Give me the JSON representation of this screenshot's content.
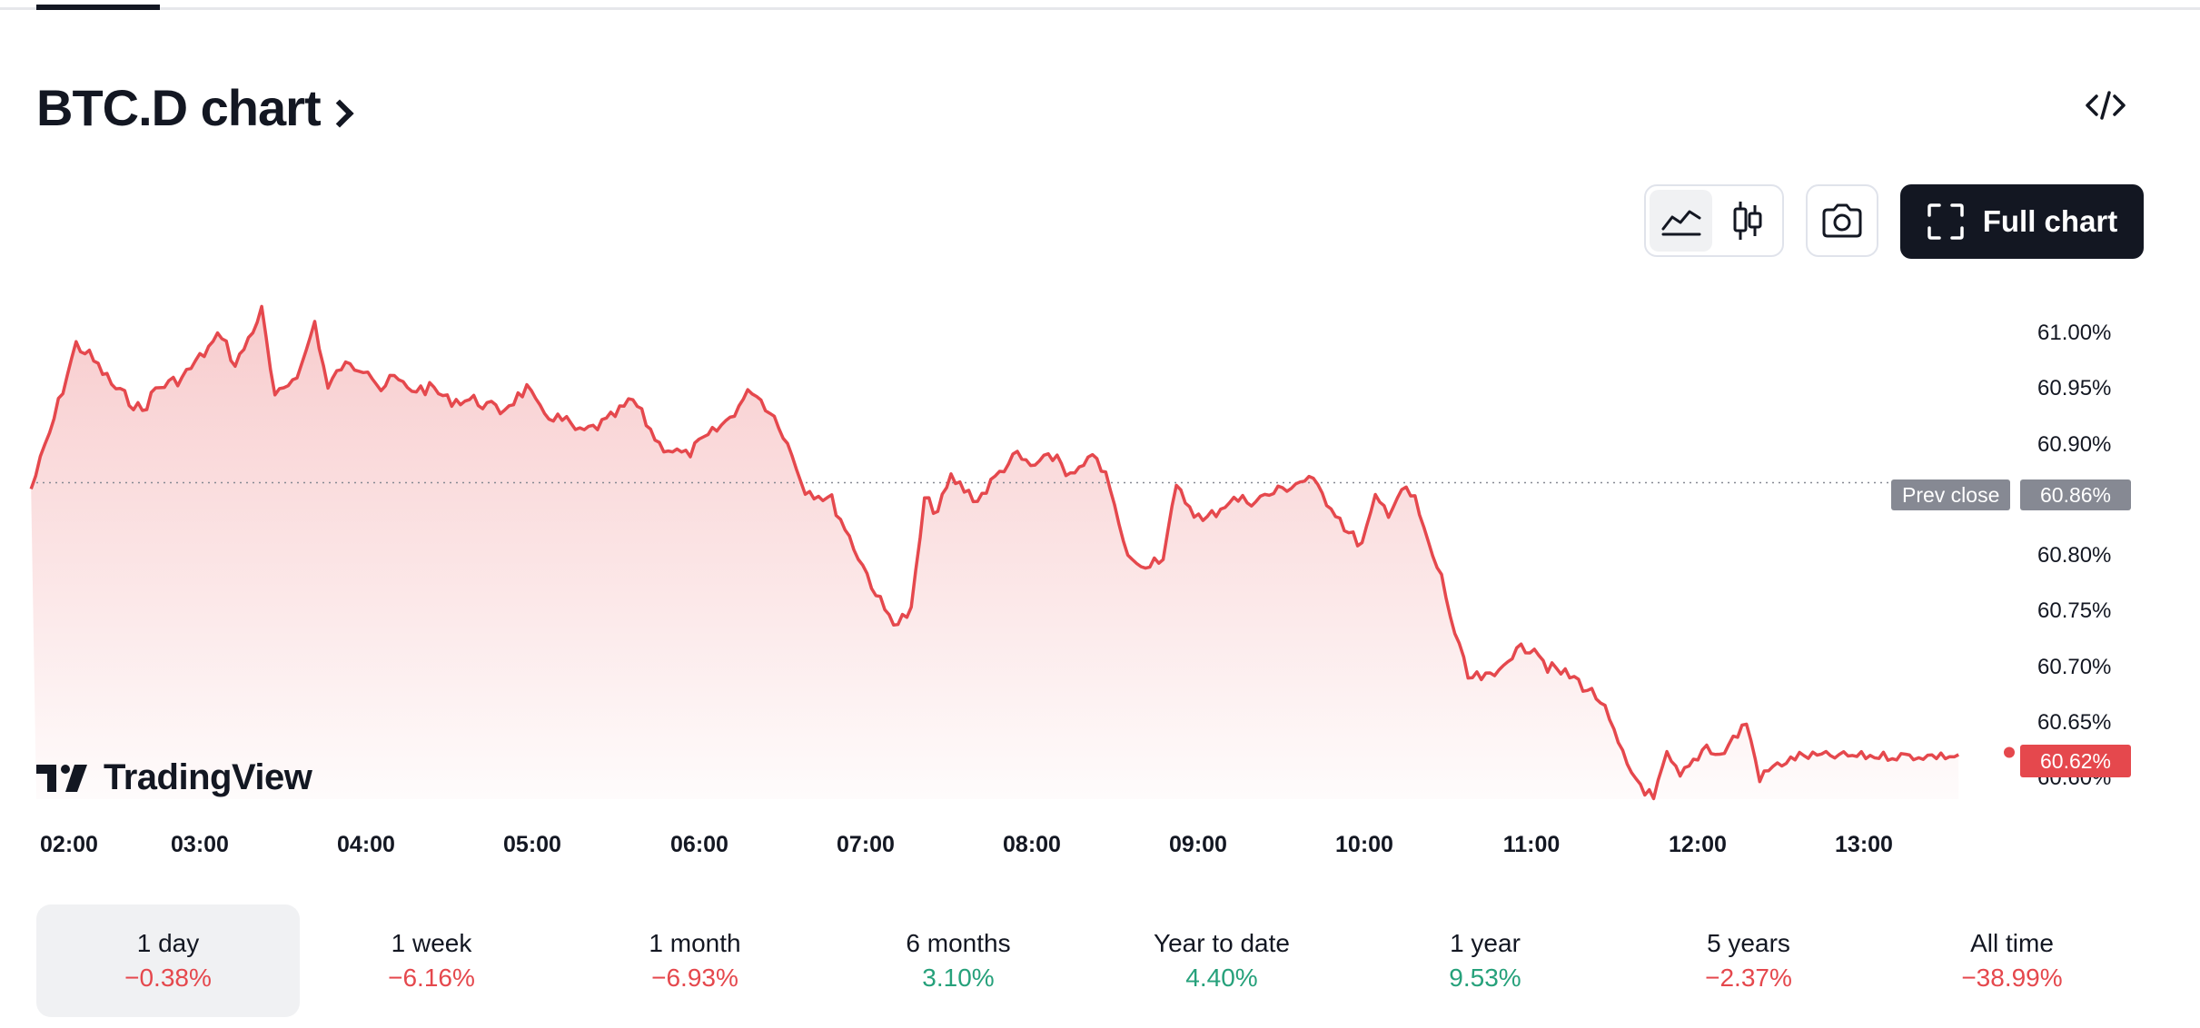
{
  "header": {
    "title": "BTC.D chart",
    "embed_icon": "code-icon"
  },
  "toolbar": {
    "area_icon": "area-chart-icon",
    "candles_icon": "candlestick-icon",
    "camera_icon": "camera-icon",
    "full_chart_label": "Full chart",
    "full_chart_icon": "fullscreen-icon"
  },
  "colors": {
    "line": "#e5484d",
    "positive": "#26a17b",
    "negative": "#e5484d",
    "prev_close_badge": "#868993"
  },
  "chart_data": {
    "type": "area",
    "title": "",
    "xlabel": "",
    "ylabel": "",
    "x_ticks": [
      "02:00",
      "03:00",
      "04:00",
      "05:00",
      "06:00",
      "07:00",
      "08:00",
      "09:00",
      "10:00",
      "11:00",
      "12:00",
      "13:00"
    ],
    "y_ticks": [
      "61.00%",
      "60.95%",
      "60.90%",
      "60.80%",
      "60.75%",
      "60.70%",
      "60.65%",
      "60.60%"
    ],
    "ylim": [
      60.58,
      61.03
    ],
    "xlim": [
      "01:50",
      "14:10"
    ],
    "prev_close": {
      "label": "Prev close",
      "value": 60.86,
      "value_label": "60.86%"
    },
    "last_value": {
      "value": 60.62,
      "value_label": "60.62%"
    },
    "series": [
      {
        "x": [
          "01:48",
          "01:55",
          "02:05",
          "02:10",
          "02:20",
          "02:30",
          "02:35",
          "02:45",
          "03:00",
          "03:05",
          "03:15",
          "03:20",
          "03:30",
          "03:35",
          "03:40",
          "03:45",
          "03:55",
          "04:00",
          "04:05",
          "04:10",
          "04:20",
          "04:25",
          "04:35",
          "04:45",
          "04:55",
          "05:00",
          "05:10",
          "05:15",
          "05:25",
          "05:35",
          "05:45",
          "05:55",
          "06:00",
          "06:10",
          "06:20",
          "06:30",
          "06:40",
          "06:50",
          "07:00",
          "07:10",
          "07:15",
          "07:20",
          "07:25",
          "07:30",
          "07:35",
          "07:40",
          "07:45",
          "07:55",
          "08:00",
          "08:05",
          "08:15",
          "08:20",
          "08:25",
          "08:30",
          "08:35",
          "08:40",
          "08:45",
          "08:55",
          "09:00",
          "09:10",
          "09:20",
          "09:30",
          "09:40",
          "09:50",
          "10:00",
          "10:05",
          "10:10",
          "10:15",
          "10:20",
          "10:25",
          "10:30",
          "10:35",
          "10:40",
          "10:45",
          "10:50",
          "11:00",
          "11:05",
          "11:15",
          "11:20",
          "11:30",
          "11:40",
          "11:45",
          "11:50",
          "12:00",
          "12:05",
          "12:10",
          "12:20",
          "12:25",
          "12:35",
          "12:40",
          "12:45",
          "12:55",
          "13:00",
          "13:05",
          "13:10",
          "13:15",
          "13:20",
          "13:25",
          "13:30",
          "13:35",
          "13:38",
          "13:40",
          "13:45",
          "13:50",
          "13:55",
          "14:00"
        ],
        "values": [
          60.86,
          60.91,
          60.99,
          60.98,
          60.95,
          60.93,
          60.95,
          60.96,
          61.0,
          60.97,
          61.02,
          60.94,
          60.97,
          61.01,
          60.95,
          60.97,
          60.97,
          60.95,
          60.96,
          60.95,
          60.95,
          60.94,
          60.94,
          60.93,
          60.95,
          60.93,
          60.92,
          60.91,
          60.92,
          60.94,
          60.9,
          60.89,
          60.9,
          60.92,
          60.95,
          60.92,
          60.86,
          60.85,
          60.8,
          60.75,
          60.74,
          60.75,
          60.85,
          60.84,
          60.87,
          60.86,
          60.85,
          60.88,
          60.89,
          60.88,
          60.89,
          60.87,
          60.88,
          60.89,
          60.86,
          60.81,
          60.79,
          60.8,
          60.86,
          60.83,
          60.85,
          60.85,
          60.86,
          60.87,
          60.84,
          60.82,
          60.81,
          60.85,
          60.84,
          60.86,
          60.85,
          60.81,
          60.78,
          60.73,
          60.69,
          60.69,
          60.71,
          60.72,
          60.7,
          60.69,
          60.67,
          60.64,
          60.61,
          60.58,
          60.62,
          60.6,
          60.63,
          60.62,
          60.65,
          60.6,
          60.61,
          60.62,
          60.62,
          60.62,
          60.62,
          60.62,
          60.62,
          60.62,
          60.62,
          60.62,
          60.62,
          60.62,
          60.62,
          60.62,
          60.62,
          60.62
        ]
      }
    ]
  },
  "watermark": {
    "brand": "TradingView",
    "logo_icon": "tradingview-logo-icon"
  },
  "periods": [
    {
      "label": "1 day",
      "change": "−0.38%",
      "trend": "neg"
    },
    {
      "label": "1 week",
      "change": "−6.16%",
      "trend": "neg"
    },
    {
      "label": "1 month",
      "change": "−6.93%",
      "trend": "neg"
    },
    {
      "label": "6 months",
      "change": "3.10%",
      "trend": "pos"
    },
    {
      "label": "Year to date",
      "change": "4.40%",
      "trend": "pos"
    },
    {
      "label": "1 year",
      "change": "9.53%",
      "trend": "pos"
    },
    {
      "label": "5 years",
      "change": "−2.37%",
      "trend": "neg"
    },
    {
      "label": "All time",
      "change": "−38.99%",
      "trend": "neg"
    }
  ]
}
